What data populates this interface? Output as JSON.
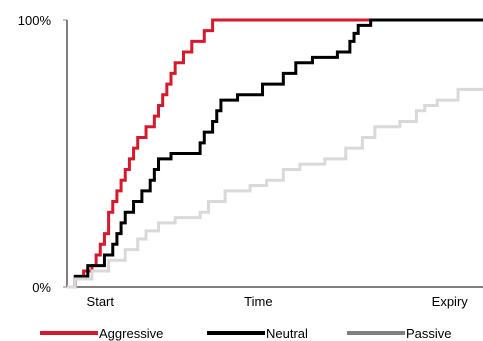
{
  "chart_data": {
    "type": "line",
    "title": "",
    "xlabel": "",
    "ylabel": "",
    "x_tick_labels": [
      "Start",
      "Time",
      "Expiry"
    ],
    "y_tick_labels": [
      "0%",
      "100%"
    ],
    "xlim": [
      0,
      100
    ],
    "ylim": [
      0,
      100
    ],
    "grid": false,
    "legend_position": "bottom",
    "series": [
      {
        "name": "Aggressive",
        "color": "#d7192d",
        "points": [
          [
            0,
            0
          ],
          [
            2,
            4
          ],
          [
            4,
            6
          ],
          [
            6,
            8
          ],
          [
            7,
            12
          ],
          [
            8,
            16
          ],
          [
            9,
            20
          ],
          [
            10,
            28
          ],
          [
            11,
            32
          ],
          [
            12,
            36
          ],
          [
            13,
            40
          ],
          [
            14,
            44
          ],
          [
            15,
            48
          ],
          [
            16,
            52
          ],
          [
            17,
            56
          ],
          [
            19,
            60
          ],
          [
            21,
            64
          ],
          [
            22,
            68
          ],
          [
            23,
            72
          ],
          [
            24,
            76
          ],
          [
            25,
            80
          ],
          [
            26,
            84
          ],
          [
            28,
            88
          ],
          [
            30,
            92
          ],
          [
            33,
            96
          ],
          [
            35,
            100
          ],
          [
            100,
            100
          ]
        ]
      },
      {
        "name": "Neutral",
        "color": "#000000",
        "points": [
          [
            0,
            0
          ],
          [
            2,
            4
          ],
          [
            5,
            8
          ],
          [
            9,
            12
          ],
          [
            11,
            16
          ],
          [
            12,
            20
          ],
          [
            13,
            24
          ],
          [
            14,
            28
          ],
          [
            16,
            32
          ],
          [
            18,
            36
          ],
          [
            20,
            40
          ],
          [
            21,
            44
          ],
          [
            22,
            48
          ],
          [
            25,
            50
          ],
          [
            32,
            54
          ],
          [
            33,
            58
          ],
          [
            35,
            62
          ],
          [
            36,
            66
          ],
          [
            37,
            70
          ],
          [
            41,
            72
          ],
          [
            47,
            76
          ],
          [
            52,
            80
          ],
          [
            55,
            84
          ],
          [
            59,
            86
          ],
          [
            65,
            88
          ],
          [
            68,
            92
          ],
          [
            69,
            95
          ],
          [
            70,
            98
          ],
          [
            73,
            100
          ],
          [
            100,
            100
          ]
        ]
      },
      {
        "name": "Passive",
        "color": "#d9d9d9",
        "points": [
          [
            0,
            0
          ],
          [
            2,
            3
          ],
          [
            6,
            6
          ],
          [
            10,
            10
          ],
          [
            14,
            14
          ],
          [
            17,
            18
          ],
          [
            19,
            21
          ],
          [
            22,
            24
          ],
          [
            26,
            26
          ],
          [
            32,
            28
          ],
          [
            34,
            32
          ],
          [
            38,
            36
          ],
          [
            44,
            38
          ],
          [
            48,
            40
          ],
          [
            52,
            44
          ],
          [
            56,
            46
          ],
          [
            62,
            48
          ],
          [
            67,
            52
          ],
          [
            71,
            56
          ],
          [
            74,
            60
          ],
          [
            80,
            62
          ],
          [
            84,
            66
          ],
          [
            86,
            68
          ],
          [
            89,
            70
          ],
          [
            94,
            74
          ],
          [
            100,
            74
          ]
        ]
      }
    ]
  }
}
